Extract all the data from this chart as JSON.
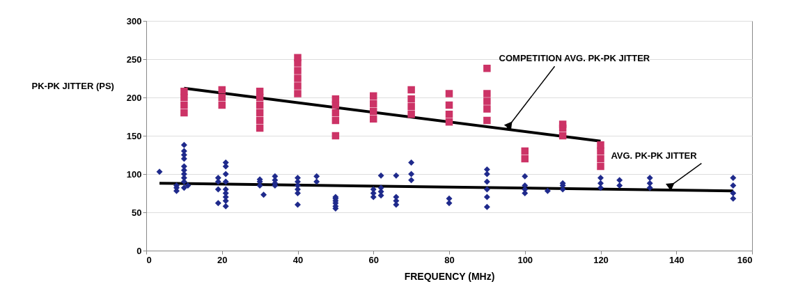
{
  "chart_data": {
    "type": "scatter",
    "xlabel": "FREQUENCY (MHz)",
    "ylabel": "PK-PK JITTER (PS)",
    "xlim": [
      0,
      160
    ],
    "xticks": [
      0,
      20,
      40,
      60,
      80,
      100,
      120,
      140,
      160
    ],
    "ylim": [
      0,
      300
    ],
    "yticks": [
      0,
      50,
      100,
      150,
      200,
      250,
      300
    ],
    "grid": "y",
    "annotations": [
      {
        "text": "COMPETITION AVG. PK-PK JITTER",
        "x": 95,
        "y": 158
      },
      {
        "text": "AVG. PK-PK JITTER",
        "x": 138,
        "y": 83
      }
    ],
    "series": [
      {
        "marker": "square",
        "color": "#cc3366",
        "x": [
          10,
          10,
          10,
          10,
          20,
          20,
          20,
          30,
          30,
          30,
          30,
          30,
          30,
          40,
          40,
          40,
          40,
          40,
          40,
          50,
          50,
          50,
          50,
          50,
          60,
          60,
          60,
          60,
          70,
          70,
          70,
          70,
          80,
          80,
          80,
          80,
          90,
          90,
          90,
          90,
          90,
          100,
          100,
          110,
          110,
          110,
          120,
          120,
          120,
          120
        ],
        "values": [
          180,
          190,
          200,
          208,
          190,
          200,
          210,
          160,
          170,
          180,
          190,
          200,
          208,
          205,
          215,
          225,
          235,
          245,
          252,
          150,
          170,
          180,
          190,
          198,
          172,
          182,
          192,
          202,
          178,
          188,
          198,
          210,
          168,
          178,
          190,
          205,
          170,
          185,
          195,
          205,
          238,
          120,
          130,
          150,
          160,
          165,
          110,
          120,
          130,
          138
        ]
      },
      {
        "marker": "diamond",
        "color": "#1f2a8c",
        "x": [
          3.5,
          8,
          8,
          8,
          10,
          10,
          10,
          10,
          10,
          10,
          10,
          10,
          10,
          10,
          11,
          19,
          19,
          19,
          19,
          21,
          21,
          21,
          21,
          21,
          21,
          21,
          21,
          21,
          30,
          30,
          30,
          31,
          34,
          34,
          34,
          34,
          40,
          40,
          40,
          40,
          40,
          40,
          45,
          45,
          50,
          50,
          50,
          50,
          50,
          50,
          60,
          60,
          60,
          62,
          62,
          62,
          62,
          66,
          66,
          66,
          66,
          70,
          70,
          70,
          80,
          80,
          90,
          90,
          90,
          90,
          90,
          90,
          100,
          100,
          100,
          100,
          106,
          110,
          110,
          110,
          120,
          120,
          120,
          125,
          125,
          133,
          133,
          133,
          155,
          155,
          155,
          155
        ],
        "values": [
          103,
          78,
          82,
          85,
          82,
          90,
          95,
          100,
          105,
          110,
          120,
          125,
          130,
          138,
          85,
          62,
          80,
          90,
          95,
          58,
          65,
          70,
          75,
          80,
          90,
          100,
          110,
          115,
          85,
          90,
          93,
          73,
          85,
          88,
          92,
          97,
          60,
          75,
          80,
          85,
          90,
          95,
          90,
          97,
          55,
          58,
          62,
          65,
          68,
          70,
          70,
          75,
          80,
          72,
          77,
          82,
          98,
          60,
          65,
          70,
          98,
          92,
          100,
          115,
          62,
          68,
          57,
          70,
          80,
          90,
          100,
          106,
          75,
          80,
          85,
          97,
          78,
          80,
          85,
          88,
          82,
          88,
          95,
          85,
          92,
          82,
          88,
          95,
          68,
          75,
          85,
          95
        ]
      },
      {
        "type": "line",
        "color": "#000000",
        "x": [
          10,
          120
        ],
        "values": [
          212,
          143
        ]
      },
      {
        "type": "line",
        "color": "#000000",
        "x": [
          3.5,
          155
        ],
        "values": [
          88,
          78
        ]
      }
    ]
  }
}
